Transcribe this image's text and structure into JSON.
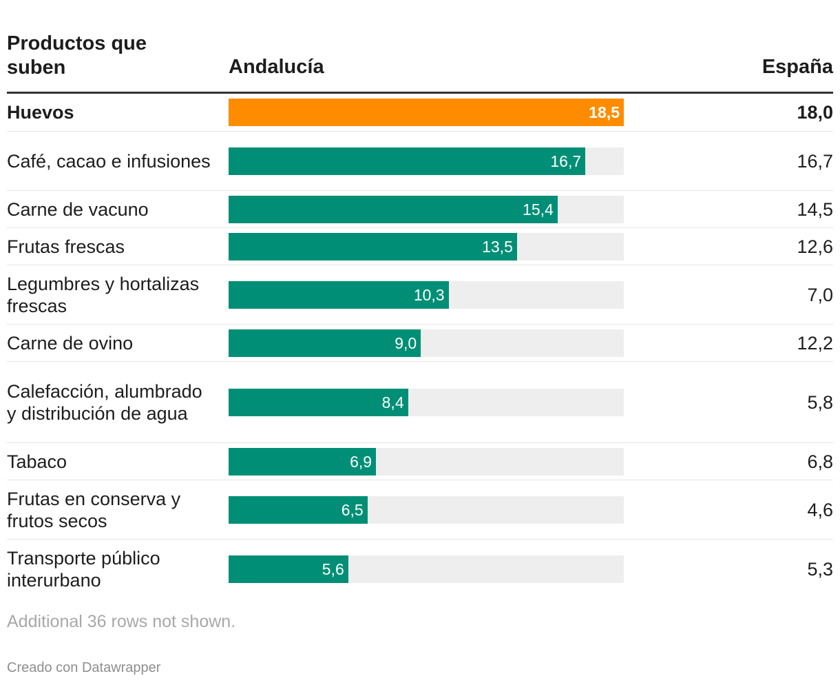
{
  "chart_data": {
    "type": "table",
    "columns": [
      "Productos que suben",
      "Andalucía",
      "España"
    ],
    "series": [
      {
        "name": "Andalucía",
        "values": [
          18.5,
          16.7,
          15.4,
          13.5,
          10.3,
          9.0,
          8.4,
          6.9,
          6.5,
          5.6
        ]
      },
      {
        "name": "España",
        "values": [
          18.0,
          16.7,
          14.5,
          12.6,
          7.0,
          12.2,
          5.8,
          6.8,
          4.6,
          5.3
        ]
      }
    ],
    "bar_range": [
      0,
      18.5
    ],
    "highlight_row": 0,
    "rows": [
      {
        "product": "Huevos",
        "andalucia": 18.5,
        "andalucia_label": "18,5",
        "espana": "18,0"
      },
      {
        "product": "Café, cacao e infusiones",
        "andalucia": 16.7,
        "andalucia_label": "16,7",
        "espana": "16,7"
      },
      {
        "product": "Carne de vacuno",
        "andalucia": 15.4,
        "andalucia_label": "15,4",
        "espana": "14,5"
      },
      {
        "product": "Frutas frescas",
        "andalucia": 13.5,
        "andalucia_label": "13,5",
        "espana": "12,6"
      },
      {
        "product": "Legumbres y hortalizas frescas",
        "andalucia": 10.3,
        "andalucia_label": "10,3",
        "espana": "7,0"
      },
      {
        "product": "Carne de ovino",
        "andalucia": 9.0,
        "andalucia_label": "9,0",
        "espana": "12,2"
      },
      {
        "product": "Calefacción, alumbrado y distribución de agua",
        "andalucia": 8.4,
        "andalucia_label": "8,4",
        "espana": "5,8"
      },
      {
        "product": "Tabaco",
        "andalucia": 6.9,
        "andalucia_label": "6,9",
        "espana": "6,8"
      },
      {
        "product": "Frutas en conserva y frutos secos",
        "andalucia": 6.5,
        "andalucia_label": "6,5",
        "espana": "4,6"
      },
      {
        "product": "Transporte público interurbano",
        "andalucia": 5.6,
        "andalucia_label": "5,6",
        "espana": "5,3"
      }
    ],
    "colors": {
      "highlight_bar": "#ff8c00",
      "bar": "#008f76",
      "track": "#eeeeee"
    }
  },
  "header": {
    "product": "Productos que suben",
    "andalucia": "Andalucía",
    "espana": "España"
  },
  "footer": {
    "note": "Additional 36 rows not shown.",
    "credit": "Creado con Datawrapper"
  }
}
